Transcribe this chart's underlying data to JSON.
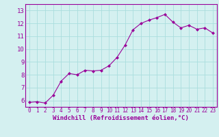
{
  "x": [
    0,
    1,
    2,
    3,
    4,
    5,
    6,
    7,
    8,
    9,
    10,
    11,
    12,
    13,
    14,
    15,
    16,
    17,
    18,
    19,
    20,
    21,
    22,
    23
  ],
  "y": [
    5.85,
    5.9,
    5.8,
    6.4,
    7.5,
    8.1,
    8.0,
    8.35,
    8.3,
    8.35,
    8.7,
    9.35,
    10.3,
    11.5,
    12.0,
    12.25,
    12.45,
    12.7,
    12.1,
    11.65,
    11.85,
    11.55,
    11.65,
    11.25
  ],
  "line_color": "#990099",
  "marker": "D",
  "marker_size": 2.0,
  "bg_color": "#d4f0f0",
  "grid_color": "#aadddd",
  "xlabel": "Windchill (Refroidissement éolien,°C)",
  "xlabel_color": "#990099",
  "tick_color": "#990099",
  "spine_color": "#990099",
  "xlim": [
    -0.5,
    23.5
  ],
  "ylim": [
    5.5,
    13.5
  ],
  "yticks": [
    6,
    7,
    8,
    9,
    10,
    11,
    12,
    13
  ],
  "xticks": [
    0,
    1,
    2,
    3,
    4,
    5,
    6,
    7,
    8,
    9,
    10,
    11,
    12,
    13,
    14,
    15,
    16,
    17,
    18,
    19,
    20,
    21,
    22,
    23
  ]
}
